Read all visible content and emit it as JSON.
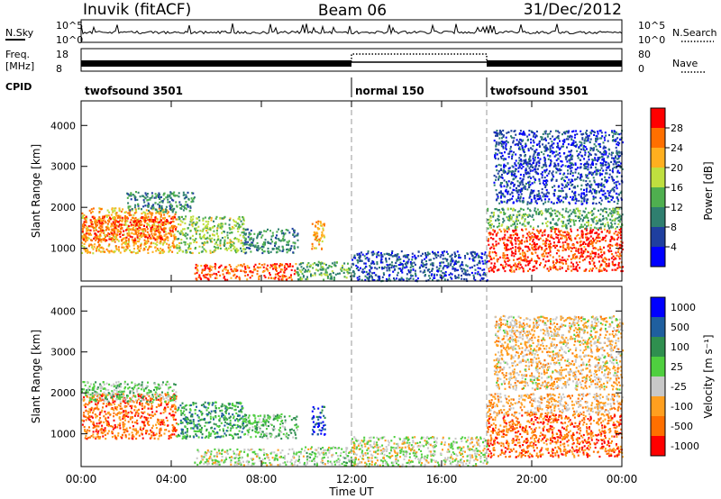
{
  "header": {
    "station": "Inuvik (fitACF)",
    "beam": "Beam 06",
    "date": "31/Dec/2012"
  },
  "nsky_panel": {
    "label": "N.Sky",
    "ticks": [
      "10^5",
      "10^0"
    ],
    "right_ticks": [
      "10^5",
      "10^0"
    ],
    "right_legend": "N.Search"
  },
  "freq_panel": {
    "label_top": "Freq.",
    "label_unit": "[MHz]",
    "left_ticks": [
      "18",
      "8"
    ],
    "right_ticks": [
      "80",
      "0"
    ],
    "right_legend": "Nave"
  },
  "cpid": {
    "label": "CPID",
    "segments": [
      {
        "name": "twofsound 3501",
        "start_h": 0,
        "end_h": 12
      },
      {
        "name": "normal 150",
        "start_h": 12,
        "end_h": 18
      },
      {
        "name": "twofsound 3501",
        "start_h": 18,
        "end_h": 24
      }
    ]
  },
  "colors": {
    "power_scale": [
      "#0000ff",
      "#1f3f9f",
      "#2f7f6f",
      "#4faf4f",
      "#bfdf3f",
      "#ffaf1f",
      "#ff6f00",
      "#ff0000"
    ],
    "velocity_scale": [
      "#ff0000",
      "#ff6f00",
      "#ff9f1f",
      "#c8c8c8",
      "#4fcf3f",
      "#2f8f4f",
      "#1f5f9f",
      "#0000ff"
    ]
  },
  "chart_data": [
    {
      "type": "heatmap",
      "name": "power",
      "ylabel": "Slant Range [km]",
      "yticks": [
        1000,
        2000,
        3000,
        4000
      ],
      "ylim": [
        200,
        4600
      ],
      "xlim": [
        0,
        24
      ],
      "xticks": [
        0,
        4,
        8,
        12,
        16,
        20,
        24
      ],
      "colorbar": {
        "label": "Power [dB]",
        "ticks": [
          "4",
          "8",
          "12",
          "16",
          "20",
          "24",
          "28"
        ],
        "range": [
          0,
          32
        ]
      },
      "scatter_bands": [
        {
          "t0": 0.0,
          "t1": 4.2,
          "r0": 900,
          "r1": 2000,
          "level": 0.74
        },
        {
          "t0": 0.0,
          "t1": 4.2,
          "r0": 1200,
          "r1": 1800,
          "level": 0.9
        },
        {
          "t0": 2.0,
          "t1": 5.0,
          "r0": 1900,
          "r1": 2400,
          "level": 0.3
        },
        {
          "t0": 4.2,
          "t1": 7.2,
          "r0": 900,
          "r1": 1800,
          "level": 0.5
        },
        {
          "t0": 7.2,
          "t1": 9.6,
          "r0": 900,
          "r1": 1500,
          "level": 0.3
        },
        {
          "t0": 5.0,
          "t1": 9.5,
          "r0": 250,
          "r1": 650,
          "level": 0.9
        },
        {
          "t0": 9.5,
          "t1": 12.0,
          "r0": 250,
          "r1": 700,
          "level": 0.4
        },
        {
          "t0": 10.2,
          "t1": 10.8,
          "r0": 1000,
          "r1": 1700,
          "level": 0.75
        },
        {
          "t0": 12.0,
          "t1": 18.0,
          "r0": 220,
          "r1": 950,
          "level": 0.15
        },
        {
          "t0": 18.0,
          "t1": 24.0,
          "r0": 450,
          "r1": 1500,
          "level": 0.95
        },
        {
          "t0": 18.0,
          "t1": 24.0,
          "r0": 1500,
          "r1": 2000,
          "level": 0.4
        },
        {
          "t0": 18.3,
          "t1": 24.0,
          "r0": 2100,
          "r1": 3900,
          "level": 0.12
        }
      ]
    },
    {
      "type": "heatmap",
      "name": "velocity",
      "ylabel": "Slant Range [km]",
      "yticks": [
        1000,
        2000,
        3000,
        4000
      ],
      "ylim": [
        200,
        4600
      ],
      "xlim": [
        0,
        24
      ],
      "xticks": [
        0,
        4,
        8,
        12,
        16,
        20,
        24
      ],
      "xticklabels": [
        "00:00",
        "04:00",
        "08:00",
        "12:00",
        "16:00",
        "20:00",
        "00:00"
      ],
      "xlabel": "Time UT",
      "colorbar": {
        "label": "Velocity [m s⁻¹]",
        "ticks": [
          "-1000",
          "-500",
          "-100",
          "-25",
          "25",
          "100",
          "500",
          "1000"
        ]
      },
      "scatter_bands": [
        {
          "t0": 0.0,
          "t1": 4.2,
          "r0": 900,
          "r1": 2000,
          "level": 0.15
        },
        {
          "t0": 0.0,
          "t1": 4.2,
          "r0": 1800,
          "r1": 2300,
          "level": 0.55
        },
        {
          "t0": 4.2,
          "t1": 7.2,
          "r0": 900,
          "r1": 1800,
          "level": 0.7
        },
        {
          "t0": 7.2,
          "t1": 9.6,
          "r0": 900,
          "r1": 1500,
          "level": 0.6
        },
        {
          "t0": 5.0,
          "t1": 9.5,
          "r0": 250,
          "r1": 650,
          "level": 0.45
        },
        {
          "t0": 9.5,
          "t1": 12.0,
          "r0": 250,
          "r1": 700,
          "level": 0.5
        },
        {
          "t0": 10.2,
          "t1": 10.8,
          "r0": 1000,
          "r1": 1700,
          "level": 0.9
        },
        {
          "t0": 12.0,
          "t1": 18.0,
          "r0": 220,
          "r1": 950,
          "level": 0.45
        },
        {
          "t0": 18.0,
          "t1": 24.0,
          "r0": 450,
          "r1": 1500,
          "level": 0.15
        },
        {
          "t0": 18.0,
          "t1": 24.0,
          "r0": 1500,
          "r1": 2000,
          "level": 0.3
        },
        {
          "t0": 18.3,
          "t1": 24.0,
          "r0": 2100,
          "r1": 3900,
          "level": 0.35
        }
      ]
    }
  ]
}
